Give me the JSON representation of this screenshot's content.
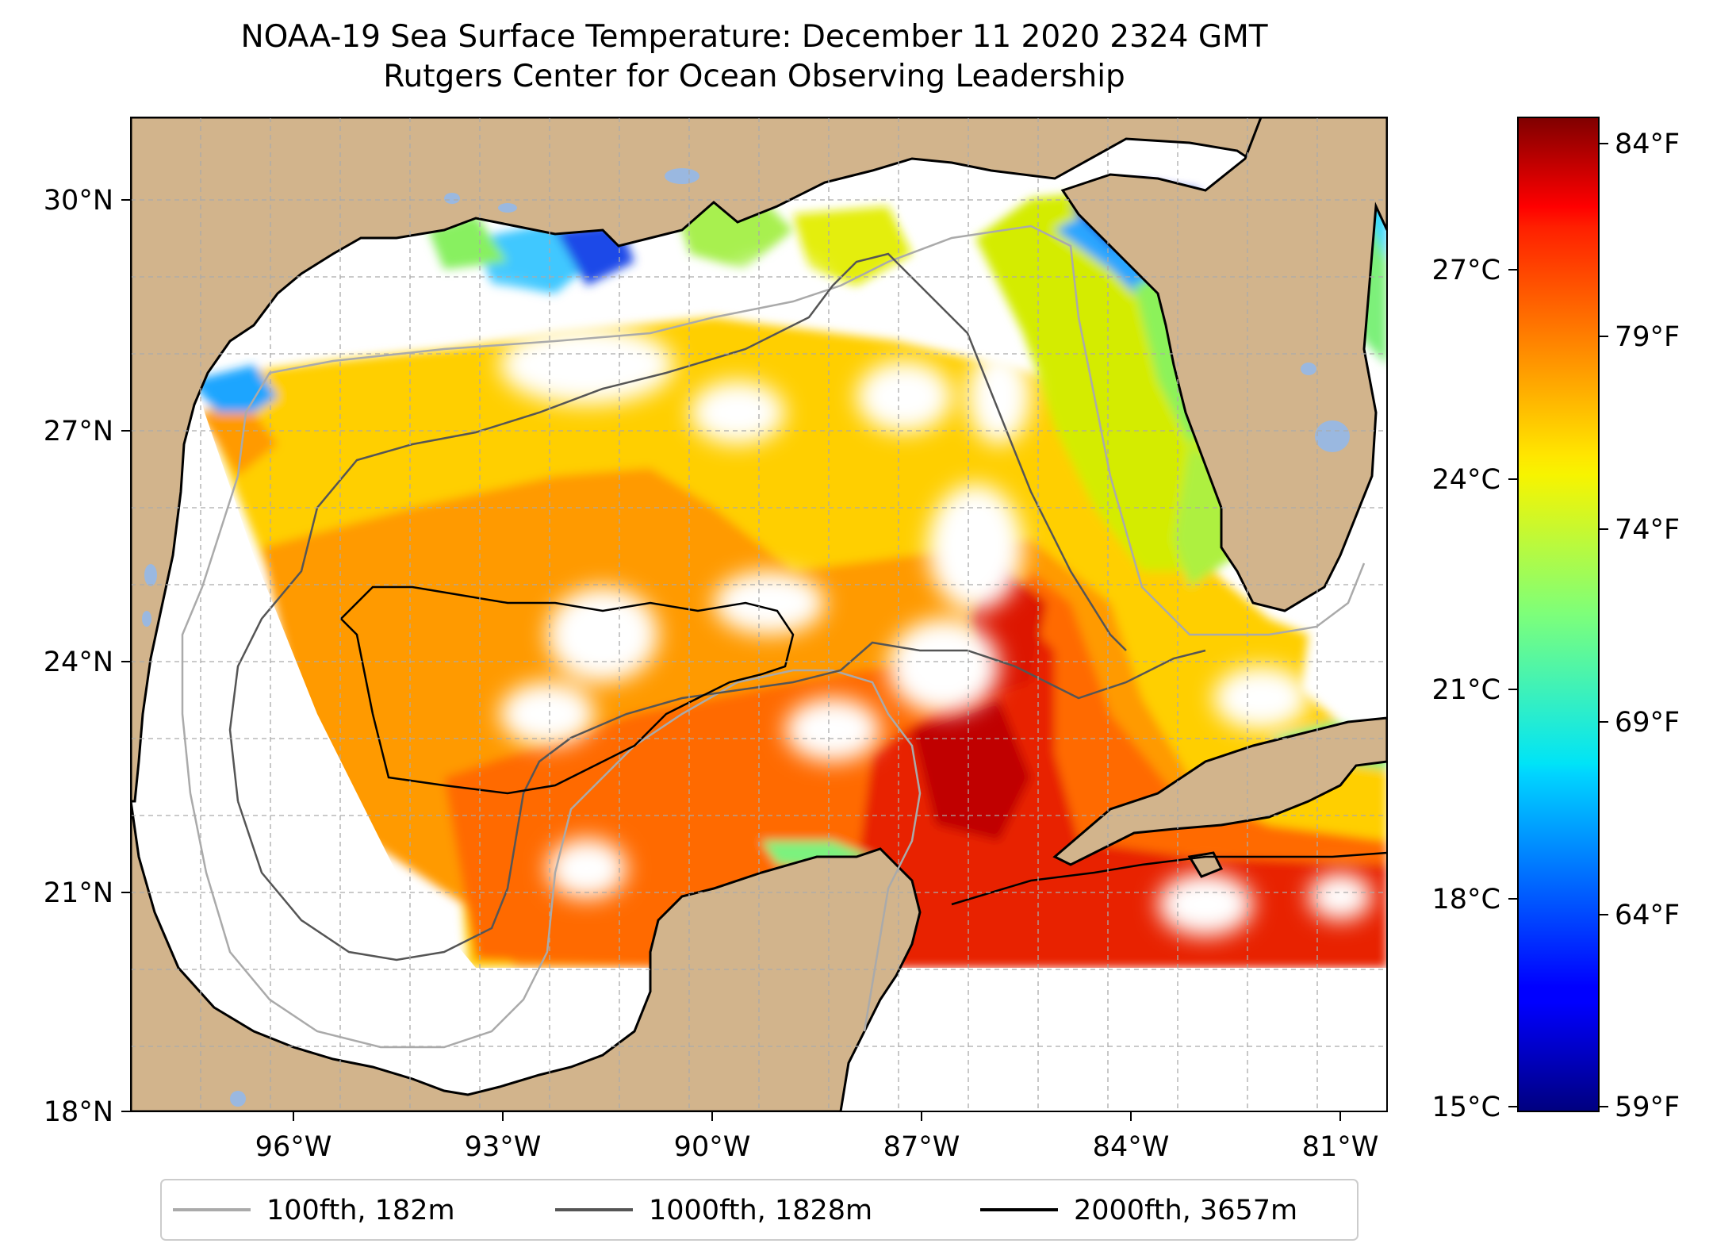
{
  "title": {
    "line1": "NOAA-19 Sea Surface Temperature: December 11 2020 2324 GMT",
    "line2": "Rutgers Center for Ocean Observing Leadership"
  },
  "map": {
    "lon_range": [
      -98.0,
      -80.0
    ],
    "lat_range": [
      18.0,
      31.0
    ],
    "lon_ticks": [
      {
        "value": -96,
        "label": "96°W"
      },
      {
        "value": -93,
        "label": "93°W"
      },
      {
        "value": -90,
        "label": "90°W"
      },
      {
        "value": -87,
        "label": "87°W"
      },
      {
        "value": -84,
        "label": "84°W"
      },
      {
        "value": -81,
        "label": "81°W"
      }
    ],
    "lat_ticks": [
      {
        "value": 30,
        "label": "30°N"
      },
      {
        "value": 27,
        "label": "27°N"
      },
      {
        "value": 24,
        "label": "24°N"
      },
      {
        "value": 21,
        "label": "21°N"
      },
      {
        "value": 18,
        "label": "18°N"
      }
    ],
    "land_color": "#d2b48c",
    "lake_color": "#9ab8e0",
    "grid": true
  },
  "colorbar": {
    "colormap": "jet",
    "celsius_ticks": [
      "27°C",
      "24°C",
      "21°C",
      "18°C",
      "15°C"
    ],
    "fahrenheit_ticks": [
      "84°F",
      "79°F",
      "74°F",
      "69°F",
      "64°F",
      "59°F"
    ]
  },
  "legend": {
    "items": [
      {
        "label": "100fth, 182m",
        "color": "#aaaaaa"
      },
      {
        "label": "1000fth, 1828m",
        "color": "#555555"
      },
      {
        "label": "2000fth, 3657m",
        "color": "#000000"
      }
    ]
  }
}
